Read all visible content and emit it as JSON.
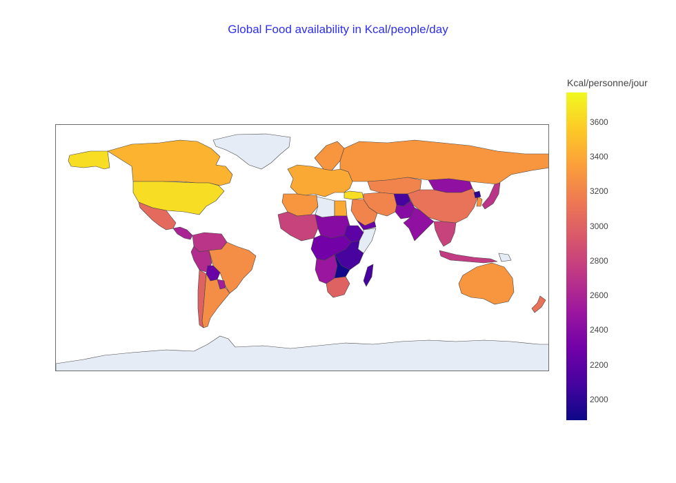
{
  "title": "Global Food availability in Kcal/people/day",
  "colorbar": {
    "title": "Kcal/personne/jour",
    "range": [
      1880,
      3770
    ],
    "ticks": [
      "2000",
      "2200",
      "2400",
      "2600",
      "2800",
      "3000",
      "3200",
      "3400",
      "3600"
    ],
    "colorscale": [
      "#0d0887",
      "#46039f",
      "#7201a8",
      "#9c179e",
      "#bd3786",
      "#d8576b",
      "#ed7953",
      "#fb9f3a",
      "#fdca26",
      "#f0f921"
    ]
  },
  "map": {
    "projection": "equirectangular",
    "missing_color": "#e5ecf6",
    "border_color": "#444444",
    "regions": [
      {
        "name": "USA",
        "kcal": 3650
      },
      {
        "name": "Canada",
        "kcal": 3450
      },
      {
        "name": "Alaska",
        "kcal": 3650
      },
      {
        "name": "Greenland",
        "kcal": null
      },
      {
        "name": "Mexico",
        "kcal": 3050
      },
      {
        "name": "Central America",
        "kcal": 2600
      },
      {
        "name": "Colombia/Venezuela",
        "kcal": 2700
      },
      {
        "name": "Brazil",
        "kcal": 3250
      },
      {
        "name": "Peru",
        "kcal": 2650
      },
      {
        "name": "Bolivia",
        "kcal": 2250
      },
      {
        "name": "Paraguay",
        "kcal": 2550
      },
      {
        "name": "Argentina",
        "kcal": 3250
      },
      {
        "name": "Chile",
        "kcal": 3000
      },
      {
        "name": "Europe",
        "kcal": 3400
      },
      {
        "name": "Scandinavia",
        "kcal": 3300
      },
      {
        "name": "Russia",
        "kcal": 3300
      },
      {
        "name": "Kazakhstan",
        "kcal": 3200
      },
      {
        "name": "Mongolia",
        "kcal": 2450
      },
      {
        "name": "China",
        "kcal": 3100
      },
      {
        "name": "India",
        "kcal": 2450
      },
      {
        "name": "Pakistan",
        "kcal": 2400
      },
      {
        "name": "Afghanistan",
        "kcal": 2100
      },
      {
        "name": "Iran/Middle East",
        "kcal": 3200
      },
      {
        "name": "Turkey",
        "kcal": 3650
      },
      {
        "name": "Saudi Arabia",
        "kcal": 3200
      },
      {
        "name": "Yemen",
        "kcal": 2250
      },
      {
        "name": "Southeast Asia",
        "kcal": 2800
      },
      {
        "name": "Indonesia",
        "kcal": 2750
      },
      {
        "name": "Japan",
        "kcal": 2700
      },
      {
        "name": "Korea",
        "kcal": 3300
      },
      {
        "name": "North Korea",
        "kcal": 2000
      },
      {
        "name": "North Africa",
        "kcal": 3300
      },
      {
        "name": "Libya",
        "kcal": null
      },
      {
        "name": "Egypt",
        "kcal": 3400
      },
      {
        "name": "West Africa",
        "kcal": 2800
      },
      {
        "name": "Chad/Sudan",
        "kcal": 2400
      },
      {
        "name": "Central Africa",
        "kcal": 2300
      },
      {
        "name": "Somalia",
        "kcal": null
      },
      {
        "name": "Ethiopia",
        "kcal": 2200
      },
      {
        "name": "East Africa",
        "kcal": 2100
      },
      {
        "name": "Zambia/Zimbabwe",
        "kcal": 1900
      },
      {
        "name": "Angola/Namibia",
        "kcal": 2500
      },
      {
        "name": "South Africa",
        "kcal": 3000
      },
      {
        "name": "Madagascar",
        "kcal": 2100
      },
      {
        "name": "Australia",
        "kcal": 3300
      },
      {
        "name": "New Zealand",
        "kcal": 3100
      },
      {
        "name": "Papua New Guinea",
        "kcal": null
      },
      {
        "name": "Antarctica",
        "kcal": null
      }
    ]
  }
}
